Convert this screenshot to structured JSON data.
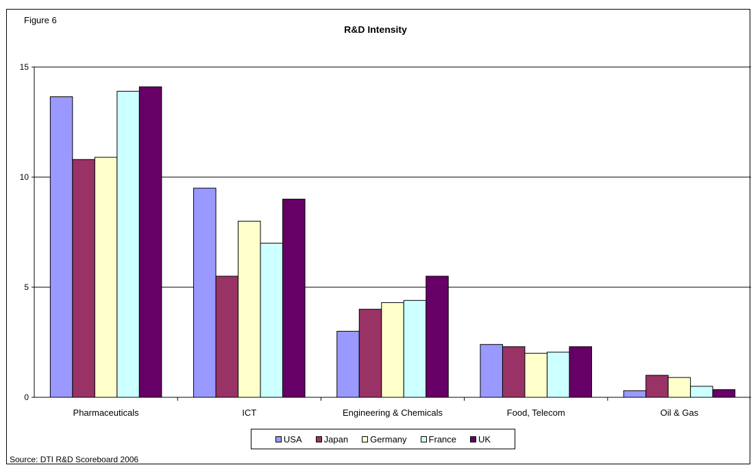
{
  "figure_label": "Figure 6",
  "source": "Source: DTI R&D Scoreboard 2006",
  "chart_data": {
    "type": "bar",
    "title": "R&D Intensity",
    "xlabel": "",
    "ylabel": "",
    "ylim": [
      0,
      15
    ],
    "yticks": [
      0,
      5,
      10,
      15
    ],
    "grid": true,
    "legend_position": "bottom",
    "categories": [
      "Pharmaceuticals",
      "ICT",
      "Engineering & Chemicals",
      "Food, Telecom",
      "Oil & Gas"
    ],
    "series": [
      {
        "name": "USA",
        "color": "#9999ff",
        "values": [
          13.65,
          9.5,
          3.0,
          2.4,
          0.3
        ]
      },
      {
        "name": "Japan",
        "color": "#993366",
        "values": [
          10.8,
          5.5,
          4.0,
          2.3,
          1.0
        ]
      },
      {
        "name": "Germany",
        "color": "#ffffcc",
        "values": [
          10.9,
          8.0,
          4.3,
          2.0,
          0.9
        ]
      },
      {
        "name": "France",
        "color": "#ccffff",
        "values": [
          13.9,
          7.0,
          4.4,
          2.05,
          0.5
        ]
      },
      {
        "name": "UK",
        "color": "#660066",
        "values": [
          14.1,
          9.0,
          5.5,
          2.3,
          0.35
        ]
      }
    ]
  }
}
